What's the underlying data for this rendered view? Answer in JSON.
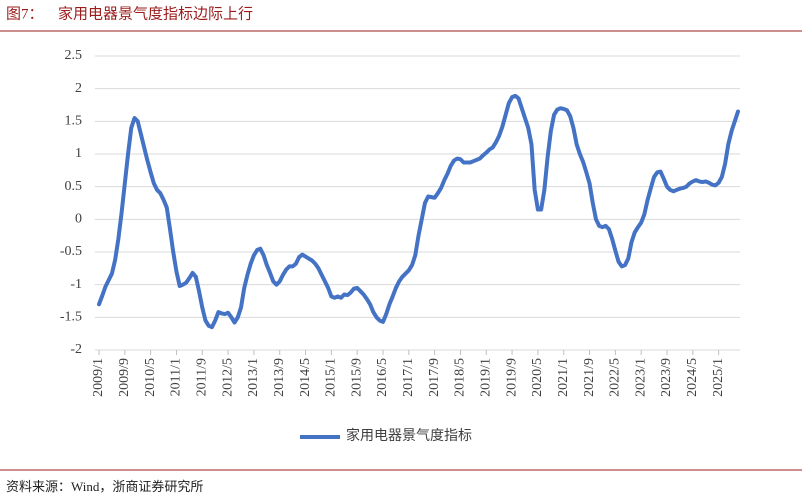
{
  "figure_label": "图7：",
  "source": "资料来源：Wind，浙商证券研究所",
  "chart_data": {
    "type": "line",
    "title": "家用电器景气度指标边际上行",
    "categories": [
      "2009/1",
      null,
      null,
      null,
      null,
      null,
      null,
      null,
      "2009/9",
      null,
      null,
      null,
      null,
      null,
      null,
      null,
      "2010/5",
      null,
      null,
      null,
      null,
      null,
      null,
      null,
      "2011/1",
      null,
      null,
      null,
      null,
      null,
      null,
      null,
      "2011/9",
      null,
      null,
      null,
      null,
      null,
      null,
      null,
      "2012/5",
      null,
      null,
      null,
      null,
      null,
      null,
      null,
      "2013/1",
      null,
      null,
      null,
      null,
      null,
      null,
      null,
      "2013/9",
      null,
      null,
      null,
      null,
      null,
      null,
      null,
      "2014/5",
      null,
      null,
      null,
      null,
      null,
      null,
      null,
      "2015/1",
      null,
      null,
      null,
      null,
      null,
      null,
      null,
      "2015/9",
      null,
      null,
      null,
      null,
      null,
      null,
      null,
      "2016/5",
      null,
      null,
      null,
      null,
      null,
      null,
      null,
      "2017/1",
      null,
      null,
      null,
      null,
      null,
      null,
      null,
      "2017/9",
      null,
      null,
      null,
      null,
      null,
      null,
      null,
      "2018/5",
      null,
      null,
      null,
      null,
      null,
      null,
      null,
      "2019/1",
      null,
      null,
      null,
      null,
      null,
      null,
      null,
      "2019/9",
      null,
      null,
      null,
      null,
      null,
      null,
      null,
      "2020/5",
      null,
      null,
      null,
      null,
      null,
      null,
      null,
      "2021/1",
      null,
      null,
      null,
      null,
      null,
      null,
      null,
      "2021/9",
      null,
      null,
      null,
      null,
      null,
      null,
      null,
      "2022/5",
      null,
      null,
      null,
      null,
      null,
      null,
      null,
      "2023/1",
      null,
      null,
      null,
      null,
      null,
      null,
      null,
      "2023/9",
      null,
      null,
      null,
      null,
      null,
      null,
      null,
      "2024/5",
      null,
      null,
      null,
      null,
      null,
      null,
      null,
      "2025/1",
      null,
      null,
      null,
      null,
      null,
      null
    ],
    "series": [
      {
        "name": "家用电器景气度指标",
        "color": "#4472c4",
        "values": [
          -1.3,
          -1.17,
          -1.03,
          -0.93,
          -0.83,
          -0.62,
          -0.3,
          0.1,
          0.55,
          1.0,
          1.4,
          1.55,
          1.5,
          1.3,
          1.1,
          0.9,
          0.72,
          0.55,
          0.45,
          0.4,
          0.3,
          0.18,
          -0.15,
          -0.5,
          -0.8,
          -1.02,
          -1.0,
          -0.97,
          -0.9,
          -0.82,
          -0.88,
          -1.1,
          -1.35,
          -1.55,
          -1.63,
          -1.65,
          -1.55,
          -1.42,
          -1.44,
          -1.45,
          -1.43,
          -1.5,
          -1.58,
          -1.5,
          -1.35,
          -1.05,
          -0.85,
          -0.68,
          -0.55,
          -0.47,
          -0.45,
          -0.55,
          -0.7,
          -0.82,
          -0.95,
          -1.0,
          -0.95,
          -0.85,
          -0.77,
          -0.72,
          -0.72,
          -0.68,
          -0.58,
          -0.54,
          -0.57,
          -0.6,
          -0.63,
          -0.68,
          -0.75,
          -0.85,
          -0.95,
          -1.05,
          -1.18,
          -1.2,
          -1.18,
          -1.2,
          -1.15,
          -1.16,
          -1.12,
          -1.06,
          -1.05,
          -1.1,
          -1.15,
          -1.22,
          -1.3,
          -1.42,
          -1.5,
          -1.55,
          -1.57,
          -1.45,
          -1.3,
          -1.18,
          -1.05,
          -0.95,
          -0.88,
          -0.83,
          -0.78,
          -0.7,
          -0.55,
          -0.25,
          0.0,
          0.25,
          0.35,
          0.34,
          0.33,
          0.4,
          0.48,
          0.6,
          0.7,
          0.82,
          0.9,
          0.93,
          0.92,
          0.87,
          0.87,
          0.87,
          0.89,
          0.91,
          0.93,
          0.98,
          1.02,
          1.07,
          1.1,
          1.18,
          1.28,
          1.42,
          1.6,
          1.78,
          1.87,
          1.89,
          1.85,
          1.7,
          1.55,
          1.4,
          1.15,
          0.45,
          0.15,
          0.15,
          0.45,
          0.95,
          1.35,
          1.6,
          1.68,
          1.7,
          1.69,
          1.67,
          1.58,
          1.4,
          1.15,
          1.0,
          0.88,
          0.72,
          0.55,
          0.25,
          0.0,
          -0.1,
          -0.12,
          -0.1,
          -0.15,
          -0.3,
          -0.48,
          -0.65,
          -0.72,
          -0.7,
          -0.6,
          -0.35,
          -0.2,
          -0.12,
          -0.05,
          0.08,
          0.3,
          0.48,
          0.65,
          0.72,
          0.73,
          0.62,
          0.5,
          0.45,
          0.43,
          0.45,
          0.47,
          0.48,
          0.5,
          0.55,
          0.58,
          0.6,
          0.58,
          0.57,
          0.58,
          0.56,
          0.53,
          0.52,
          0.56,
          0.65,
          0.85,
          1.15,
          1.35,
          1.5,
          1.65
        ]
      }
    ],
    "ylim": [
      -2,
      2.5
    ],
    "yticks": [
      -2,
      -1.5,
      -1,
      -0.5,
      0,
      0.5,
      1,
      1.5,
      2,
      2.5
    ],
    "grid": true,
    "legend": "bottom"
  }
}
